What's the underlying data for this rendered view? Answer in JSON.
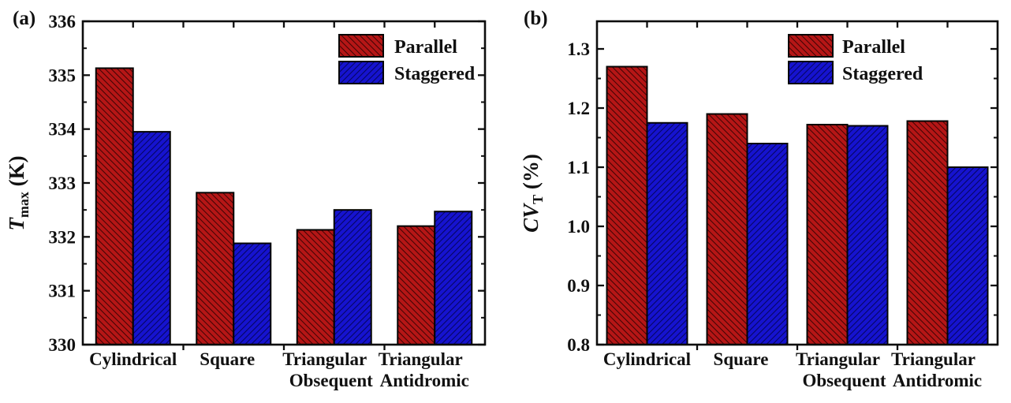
{
  "page": {
    "background": "#ffffff"
  },
  "legend": {
    "items": [
      "Parallel",
      "Staggered"
    ],
    "position": "top-right-inside"
  },
  "colors": {
    "parallel_fill": "#b51616",
    "parallel_hatch": "#400404",
    "staggered_fill": "#1613cf",
    "staggered_hatch": "#050560",
    "axis": "#0d0d0d"
  },
  "chart_data": [
    {
      "type": "bar",
      "panel_label": "(a)",
      "ylabel": "T_max (K)",
      "ylabel_parts": {
        "italic": "T",
        "subscript": "max",
        "rest": " (K)"
      },
      "categories": [
        "Cylindrical",
        "Square",
        "Triangular Obsequent",
        "Triangular Antidromic"
      ],
      "category_line1": [
        "Cylindrical",
        "Square",
        "Triangular",
        "Triangular"
      ],
      "category_line2": [
        "",
        "",
        "Obsequent",
        "Antidromic"
      ],
      "series": [
        {
          "name": "Parallel",
          "values": [
            335.13,
            332.82,
            332.13,
            332.2
          ],
          "fill": "#b51616",
          "hatch": "\\",
          "hatch_color": "#400404"
        },
        {
          "name": "Staggered",
          "values": [
            333.95,
            331.88,
            332.5,
            332.47
          ],
          "fill": "#1613cf",
          "hatch": "/",
          "hatch_color": "#050560"
        }
      ],
      "ylim": [
        330,
        336
      ],
      "yticks": [
        330,
        331,
        332,
        333,
        334,
        335,
        336
      ],
      "ytick_labels": [
        "330",
        "331",
        "332",
        "333",
        "334",
        "335",
        "336"
      ],
      "minor_tick_step": 0.5,
      "axis_top_value": 336,
      "grid": false,
      "legend_position": "top-right"
    },
    {
      "type": "bar",
      "panel_label": "(b)",
      "ylabel": "CV_T (%)",
      "ylabel_parts": {
        "italic": "CV",
        "subscript": "T",
        "rest": " (%)"
      },
      "categories": [
        "Cylindrical",
        "Square",
        "Triangular Obsequent",
        "Triangular Antidromic"
      ],
      "category_line1": [
        "Cylindrical",
        "Square",
        "Triangular",
        "Triangular"
      ],
      "category_line2": [
        "",
        "",
        "Obsequent",
        "Antidromic"
      ],
      "series": [
        {
          "name": "Parallel",
          "values": [
            1.27,
            1.19,
            1.172,
            1.178
          ],
          "fill": "#b51616",
          "hatch": "\\",
          "hatch_color": "#400404"
        },
        {
          "name": "Staggered",
          "values": [
            1.175,
            1.14,
            1.17,
            1.1
          ],
          "fill": "#1613cf",
          "hatch": "/",
          "hatch_color": "#050560"
        }
      ],
      "ylim": [
        0.8,
        1.3
      ],
      "yticks": [
        0.8,
        0.9,
        1.0,
        1.1,
        1.2,
        1.3
      ],
      "ytick_labels": [
        "0.8",
        "0.9",
        "1.0",
        "1.1",
        "1.2",
        "1.3"
      ],
      "minor_tick_step": 0.05,
      "axis_top_value": 1.3467,
      "grid": false,
      "legend_position": "top-right"
    }
  ]
}
